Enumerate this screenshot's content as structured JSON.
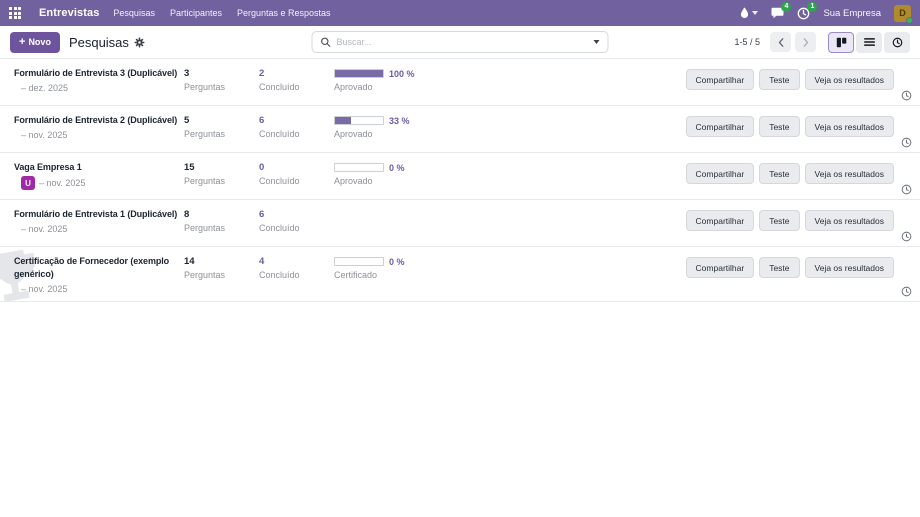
{
  "colors": {
    "accent": "#71619e",
    "link": "#6e5aa0",
    "badge_green": "#2da44e",
    "avatar_gold": "#b08b2e",
    "user_badge_magenta": "#a228a7",
    "progress_fill": "#786ba6"
  },
  "navbar": {
    "app_name": "Entrevistas",
    "menu_items": [
      "Pesquisas",
      "Participantes",
      "Perguntas e Respostas"
    ],
    "messages_badge": "4",
    "activities_badge": "1",
    "company": "Sua Empresa",
    "avatar_letter": "D"
  },
  "control": {
    "new_label": "Novo",
    "breadcrumb": "Pesquisas",
    "search_placeholder": "Buscar...",
    "pager_text": "1-5 / 5"
  },
  "labels": {
    "questions": "Perguntas",
    "completed": "Concluído"
  },
  "actions": [
    "Compartilhar",
    "Teste",
    "Veja os resultados"
  ],
  "action_names": [
    "share-button",
    "test-button",
    "see-results-button"
  ],
  "rows": [
    {
      "title": "Formulário de Entrevista 3 (Duplicável)",
      "date": "– dez. 2025",
      "avatar": "",
      "questions": "3",
      "completed": "2",
      "progress": {
        "percent": 100,
        "text": "100 %",
        "label": "Aprovado"
      },
      "watermark": false
    },
    {
      "title": "Formulário de Entrevista 2 (Duplicável)",
      "date": "– nov. 2025",
      "avatar": "",
      "questions": "5",
      "completed": "6",
      "progress": {
        "percent": 33,
        "text": "33 %",
        "label": "Aprovado"
      },
      "watermark": false
    },
    {
      "title": "Vaga Empresa 1",
      "date": "– nov. 2025",
      "avatar": "U",
      "questions": "15",
      "completed": "0",
      "progress": {
        "percent": 0,
        "text": "0 %",
        "label": "Aprovado"
      },
      "watermark": false
    },
    {
      "title": "Formulário de Entrevista 1 (Duplicável)",
      "date": "– nov. 2025",
      "avatar": "",
      "questions": "8",
      "completed": "6",
      "progress": null,
      "watermark": false
    },
    {
      "title": "Certificação de Fornecedor (exemplo genérico)",
      "date": "– nov. 2025",
      "avatar": "",
      "questions": "14",
      "completed": "4",
      "progress": {
        "percent": 0,
        "text": "0 %",
        "label": "Certificado"
      },
      "watermark": true
    }
  ]
}
